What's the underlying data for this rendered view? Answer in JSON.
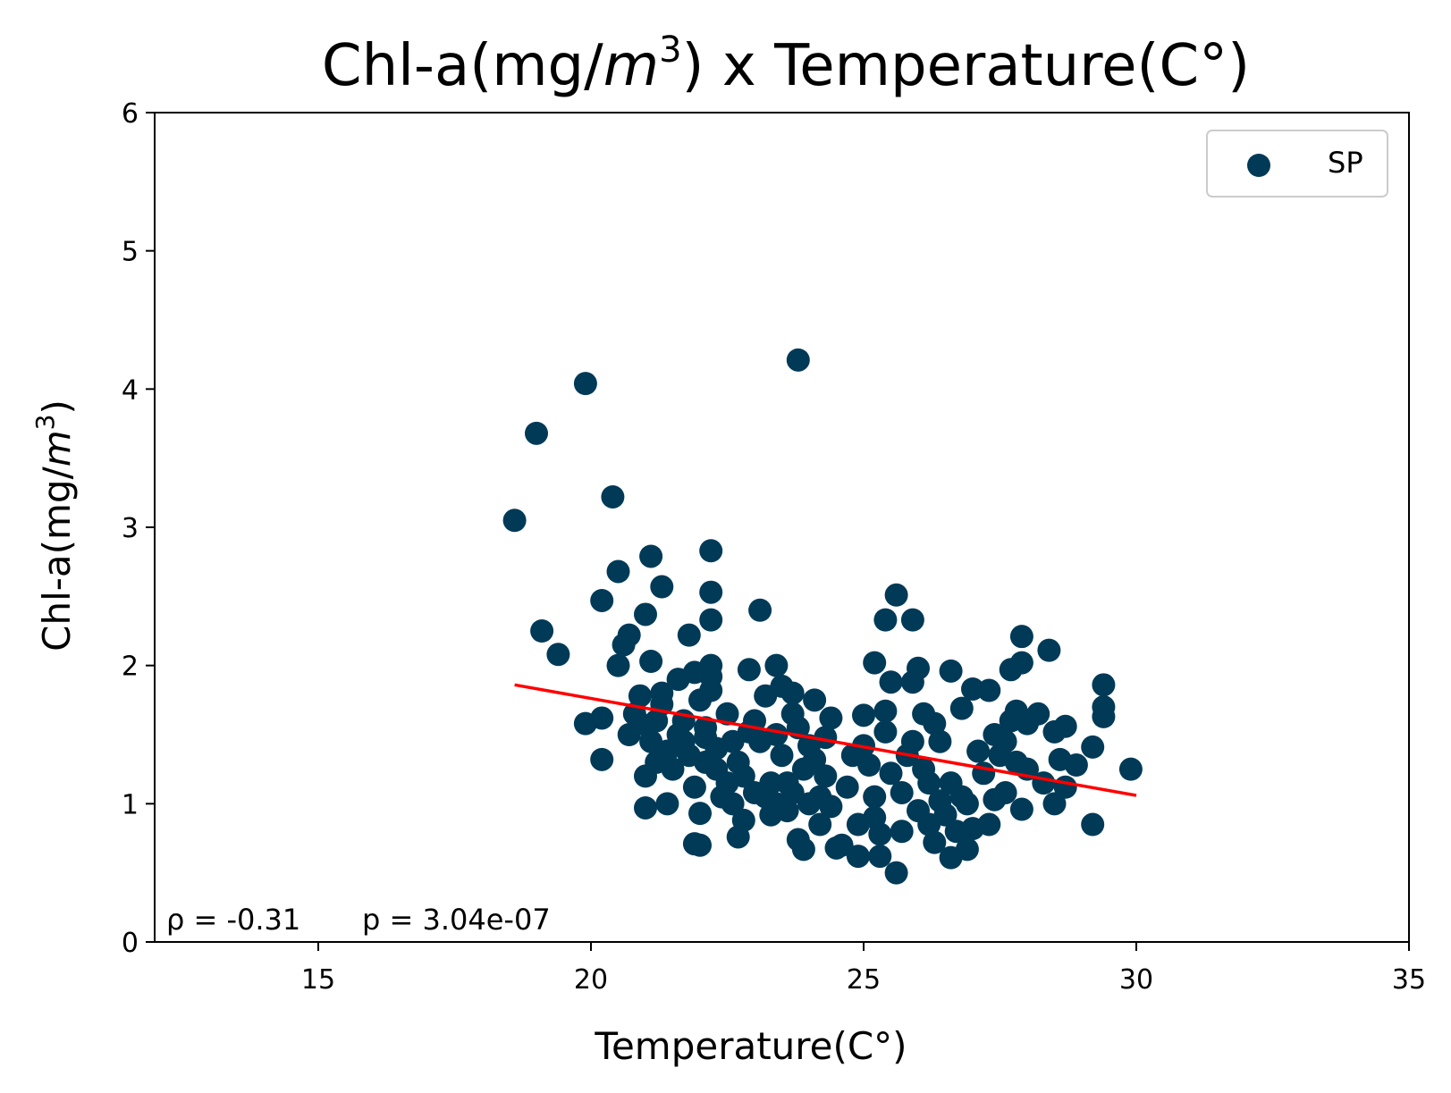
{
  "chart_data": {
    "type": "scatter",
    "title": {
      "prefix": "Chl-a(mg/",
      "var": "m",
      "sup": "3",
      "suffix": ") x Temperature(C°)"
    },
    "xlabel": "Temperature(C°)",
    "ylabel": {
      "prefix": "Chl-a(mg/",
      "var": "m",
      "sup": "3",
      "suffix": ")"
    },
    "xlim": [
      12,
      35
    ],
    "ylim": [
      0,
      6
    ],
    "xticks": [
      15,
      20,
      25,
      30,
      35
    ],
    "yticks": [
      0,
      1,
      2,
      3,
      4,
      5,
      6
    ],
    "grid": false,
    "legend": {
      "position": "top-right",
      "label": "SP"
    },
    "colors": {
      "points": "#003a57",
      "fit_line": "#ff0000"
    },
    "annotation": {
      "rho": "ρ = -0.31",
      "p": "p = 3.04e-07"
    },
    "fit_line": {
      "x": [
        18.6,
        30.0
      ],
      "y": [
        1.86,
        1.06
      ]
    },
    "series": [
      {
        "name": "SP",
        "points": [
          [
            18.6,
            3.05
          ],
          [
            19.0,
            3.68
          ],
          [
            19.1,
            2.25
          ],
          [
            19.4,
            2.08
          ],
          [
            19.9,
            4.04
          ],
          [
            19.9,
            1.58
          ],
          [
            20.2,
            2.47
          ],
          [
            20.2,
            1.32
          ],
          [
            20.2,
            1.62
          ],
          [
            20.4,
            3.22
          ],
          [
            20.5,
            2.68
          ],
          [
            20.5,
            2.0
          ],
          [
            20.6,
            2.15
          ],
          [
            20.7,
            2.22
          ],
          [
            20.7,
            1.5
          ],
          [
            20.8,
            1.65
          ],
          [
            20.9,
            1.78
          ],
          [
            20.9,
            1.58
          ],
          [
            21.0,
            2.37
          ],
          [
            21.0,
            1.2
          ],
          [
            21.0,
            0.97
          ],
          [
            21.1,
            2.79
          ],
          [
            21.1,
            2.03
          ],
          [
            21.1,
            1.45
          ],
          [
            21.2,
            1.3
          ],
          [
            21.2,
            1.6
          ],
          [
            21.3,
            2.57
          ],
          [
            21.3,
            1.8
          ],
          [
            21.3,
            1.72
          ],
          [
            21.4,
            1.38
          ],
          [
            21.4,
            1.0
          ],
          [
            21.5,
            1.25
          ],
          [
            21.6,
            1.5
          ],
          [
            21.6,
            1.9
          ],
          [
            21.7,
            1.6
          ],
          [
            21.7,
            1.45
          ],
          [
            21.8,
            2.22
          ],
          [
            21.8,
            1.35
          ],
          [
            21.9,
            1.95
          ],
          [
            21.9,
            1.12
          ],
          [
            21.9,
            0.71
          ],
          [
            22.0,
            0.7
          ],
          [
            22.0,
            1.75
          ],
          [
            22.0,
            0.93
          ],
          [
            22.1,
            1.3
          ],
          [
            22.1,
            1.55
          ],
          [
            22.1,
            1.48
          ],
          [
            22.2,
            2.83
          ],
          [
            22.2,
            2.53
          ],
          [
            22.2,
            2.33
          ],
          [
            22.2,
            2.0
          ],
          [
            22.2,
            1.82
          ],
          [
            22.2,
            1.92
          ],
          [
            22.3,
            1.25
          ],
          [
            22.3,
            1.4
          ],
          [
            22.4,
            1.05
          ],
          [
            22.5,
            1.65
          ],
          [
            22.5,
            1.15
          ],
          [
            22.6,
            1.45
          ],
          [
            22.6,
            1.0
          ],
          [
            22.7,
            0.76
          ],
          [
            22.7,
            1.3
          ],
          [
            22.8,
            0.88
          ],
          [
            22.8,
            1.2
          ],
          [
            22.9,
            1.97
          ],
          [
            22.9,
            1.52
          ],
          [
            23.0,
            1.6
          ],
          [
            23.0,
            1.08
          ],
          [
            23.1,
            2.4
          ],
          [
            23.1,
            1.45
          ],
          [
            23.2,
            1.78
          ],
          [
            23.2,
            1.05
          ],
          [
            23.3,
            0.92
          ],
          [
            23.3,
            1.15
          ],
          [
            23.4,
            2.0
          ],
          [
            23.4,
            1.5
          ],
          [
            23.4,
            1.0
          ],
          [
            23.5,
            1.85
          ],
          [
            23.5,
            1.35
          ],
          [
            23.6,
            1.15
          ],
          [
            23.6,
            0.95
          ],
          [
            23.7,
            1.8
          ],
          [
            23.7,
            1.65
          ],
          [
            23.7,
            1.08
          ],
          [
            23.8,
            4.21
          ],
          [
            23.8,
            0.74
          ],
          [
            23.8,
            1.55
          ],
          [
            23.9,
            0.67
          ],
          [
            23.9,
            1.25
          ],
          [
            24.0,
            1.42
          ],
          [
            24.0,
            1.0
          ],
          [
            24.1,
            1.75
          ],
          [
            24.1,
            1.32
          ],
          [
            24.2,
            0.85
          ],
          [
            24.2,
            1.05
          ],
          [
            24.3,
            1.48
          ],
          [
            24.3,
            1.2
          ],
          [
            24.4,
            1.62
          ],
          [
            24.4,
            0.98
          ],
          [
            24.5,
            0.68
          ],
          [
            24.6,
            0.7
          ],
          [
            24.7,
            1.12
          ],
          [
            24.8,
            1.35
          ],
          [
            24.9,
            0.62
          ],
          [
            24.9,
            0.85
          ],
          [
            25.0,
            1.64
          ],
          [
            25.0,
            1.42
          ],
          [
            25.1,
            1.28
          ],
          [
            25.2,
            1.05
          ],
          [
            25.2,
            2.02
          ],
          [
            25.2,
            0.9
          ],
          [
            25.3,
            0.62
          ],
          [
            25.3,
            0.78
          ],
          [
            25.4,
            2.33
          ],
          [
            25.4,
            1.67
          ],
          [
            25.4,
            1.52
          ],
          [
            25.5,
            1.88
          ],
          [
            25.5,
            1.22
          ],
          [
            25.6,
            2.51
          ],
          [
            25.6,
            0.5
          ],
          [
            25.7,
            1.08
          ],
          [
            25.7,
            0.8
          ],
          [
            25.8,
            1.35
          ],
          [
            25.9,
            1.45
          ],
          [
            25.9,
            2.33
          ],
          [
            25.9,
            1.88
          ],
          [
            26.0,
            1.98
          ],
          [
            26.0,
            0.95
          ],
          [
            26.1,
            1.65
          ],
          [
            26.1,
            1.25
          ],
          [
            26.2,
            1.15
          ],
          [
            26.2,
            0.85
          ],
          [
            26.3,
            1.58
          ],
          [
            26.3,
            0.72
          ],
          [
            26.4,
            1.02
          ],
          [
            26.4,
            1.45
          ],
          [
            26.5,
            0.92
          ],
          [
            26.6,
            1.96
          ],
          [
            26.6,
            0.61
          ],
          [
            26.6,
            1.15
          ],
          [
            26.7,
            0.8
          ],
          [
            26.8,
            1.69
          ],
          [
            26.8,
            1.05
          ],
          [
            26.9,
            0.67
          ],
          [
            26.9,
            1.0
          ],
          [
            27.0,
            1.83
          ],
          [
            27.0,
            0.82
          ],
          [
            27.1,
            1.38
          ],
          [
            27.2,
            1.22
          ],
          [
            27.3,
            0.85
          ],
          [
            27.3,
            1.82
          ],
          [
            27.4,
            1.5
          ],
          [
            27.4,
            1.03
          ],
          [
            27.5,
            1.35
          ],
          [
            27.6,
            1.08
          ],
          [
            27.6,
            1.45
          ],
          [
            27.7,
            1.97
          ],
          [
            27.7,
            1.6
          ],
          [
            27.8,
            1.67
          ],
          [
            27.8,
            1.3
          ],
          [
            27.9,
            2.21
          ],
          [
            27.9,
            2.02
          ],
          [
            27.9,
            0.96
          ],
          [
            28.0,
            1.58
          ],
          [
            28.0,
            1.25
          ],
          [
            28.2,
            1.65
          ],
          [
            28.3,
            1.15
          ],
          [
            28.4,
            2.11
          ],
          [
            28.5,
            1.0
          ],
          [
            28.5,
            1.52
          ],
          [
            28.6,
            1.32
          ],
          [
            28.7,
            1.56
          ],
          [
            28.7,
            1.12
          ],
          [
            28.9,
            1.28
          ],
          [
            29.2,
            1.41
          ],
          [
            29.2,
            0.85
          ],
          [
            29.4,
            1.86
          ],
          [
            29.4,
            1.7
          ],
          [
            29.4,
            1.63
          ],
          [
            29.9,
            1.25
          ]
        ]
      }
    ]
  }
}
